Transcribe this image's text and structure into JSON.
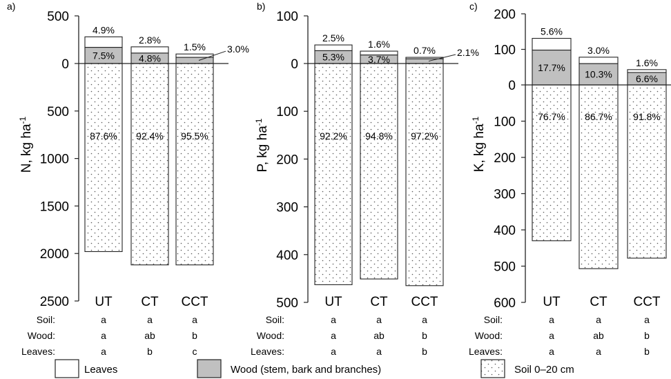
{
  "chart_data": [
    {
      "type": "bar",
      "panel_label": "a)",
      "ylabel": "N, kg ha",
      "ylabel_sup": "-1",
      "ylim_above": [
        0,
        500
      ],
      "ylim_below": [
        0,
        2500
      ],
      "yticks_above": [
        0,
        500
      ],
      "yticks_below": [
        500,
        1000,
        1500,
        2000,
        2500
      ],
      "categories": [
        "UT",
        "CT",
        "CCT"
      ],
      "series": [
        {
          "name": "Soil 0–20 cm",
          "direction": "below",
          "values": [
            1980,
            2120,
            2120
          ],
          "labels": [
            "87.6%",
            "92.4%",
            "95.5%"
          ]
        },
        {
          "name": "Wood (stem, bark and branches)",
          "direction": "above",
          "values": [
            170,
            110,
            65
          ],
          "labels": [
            "7.5%",
            "4.8%",
            "3.0%"
          ]
        },
        {
          "name": "Leaves",
          "direction": "above",
          "values": [
            110,
            65,
            35
          ],
          "labels": [
            "4.9%",
            "2.8%",
            "1.5%"
          ]
        }
      ],
      "significance": [
        {
          "label": "Soil:",
          "letters": [
            "a",
            "a",
            "a"
          ]
        },
        {
          "label": "Wood:",
          "letters": [
            "a",
            "ab",
            "b"
          ]
        },
        {
          "label": "Leaves:",
          "letters": [
            "a",
            "b",
            "c"
          ]
        }
      ]
    },
    {
      "type": "bar",
      "panel_label": "b)",
      "ylabel": "P, kg ha",
      "ylabel_sup": "-1",
      "ylim_above": [
        0,
        100
      ],
      "ylim_below": [
        0,
        500
      ],
      "yticks_above": [
        0,
        100
      ],
      "yticks_below": [
        100,
        200,
        300,
        400,
        500
      ],
      "categories": [
        "UT",
        "CT",
        "CCT"
      ],
      "series": [
        {
          "name": "Soil 0–20 cm",
          "direction": "below",
          "values": [
            463,
            451,
            465
          ],
          "labels": [
            "92.2%",
            "94.8%",
            "97.2%"
          ]
        },
        {
          "name": "Wood (stem, bark and branches)",
          "direction": "above",
          "values": [
            27,
            18,
            10
          ],
          "labels": [
            "5.3%",
            "3.7%",
            "2.1%"
          ]
        },
        {
          "name": "Leaves",
          "direction": "above",
          "values": [
            12,
            8,
            3
          ],
          "labels": [
            "2.5%",
            "1.6%",
            "0.7%"
          ]
        }
      ],
      "significance": [
        {
          "label": "Soil:",
          "letters": [
            "a",
            "a",
            "a"
          ]
        },
        {
          "label": "Wood:",
          "letters": [
            "a",
            "ab",
            "b"
          ]
        },
        {
          "label": "Leaves:",
          "letters": [
            "a",
            "a",
            "b"
          ]
        }
      ]
    },
    {
      "type": "bar",
      "panel_label": "c)",
      "ylabel": "K, kg ha",
      "ylabel_sup": "-1",
      "ylim_above": [
        0,
        200
      ],
      "ylim_below": [
        0,
        600
      ],
      "yticks_above": [
        0,
        100,
        200
      ],
      "yticks_below": [
        100,
        200,
        300,
        400,
        500,
        600
      ],
      "categories": [
        "UT",
        "CT",
        "CCT"
      ],
      "series": [
        {
          "name": "Soil 0–20 cm",
          "direction": "below",
          "values": [
            430,
            507,
            478
          ],
          "labels": [
            "76.7%",
            "86.7%",
            "91.8%"
          ]
        },
        {
          "name": "Wood (stem, bark and branches)",
          "direction": "above",
          "values": [
            98,
            60,
            35
          ],
          "labels": [
            "17.7%",
            "10.3%",
            "6.6%"
          ]
        },
        {
          "name": "Leaves",
          "direction": "above",
          "values": [
            33,
            18,
            8
          ],
          "labels": [
            "5.6%",
            "3.0%",
            "1.6%"
          ]
        }
      ],
      "significance": [
        {
          "label": "Soil:",
          "letters": [
            "a",
            "a",
            "a"
          ]
        },
        {
          "label": "Wood:",
          "letters": [
            "a",
            "ab",
            "b"
          ]
        },
        {
          "label": "Leaves:",
          "letters": [
            "a",
            "a",
            "b"
          ]
        }
      ]
    }
  ],
  "legend": {
    "items": [
      {
        "key": "leaves",
        "label": "Leaves",
        "fill": "#ffffff"
      },
      {
        "key": "wood",
        "label": "Wood (stem, bark and branches)",
        "fill": "#c0c0c0"
      },
      {
        "key": "soil",
        "label": "Soil 0–20 cm",
        "fill": "dots"
      }
    ]
  },
  "colors": {
    "leaves": "#ffffff",
    "wood": "#c0c0c0",
    "soil_dots": "#555555",
    "stroke": "#222222"
  }
}
